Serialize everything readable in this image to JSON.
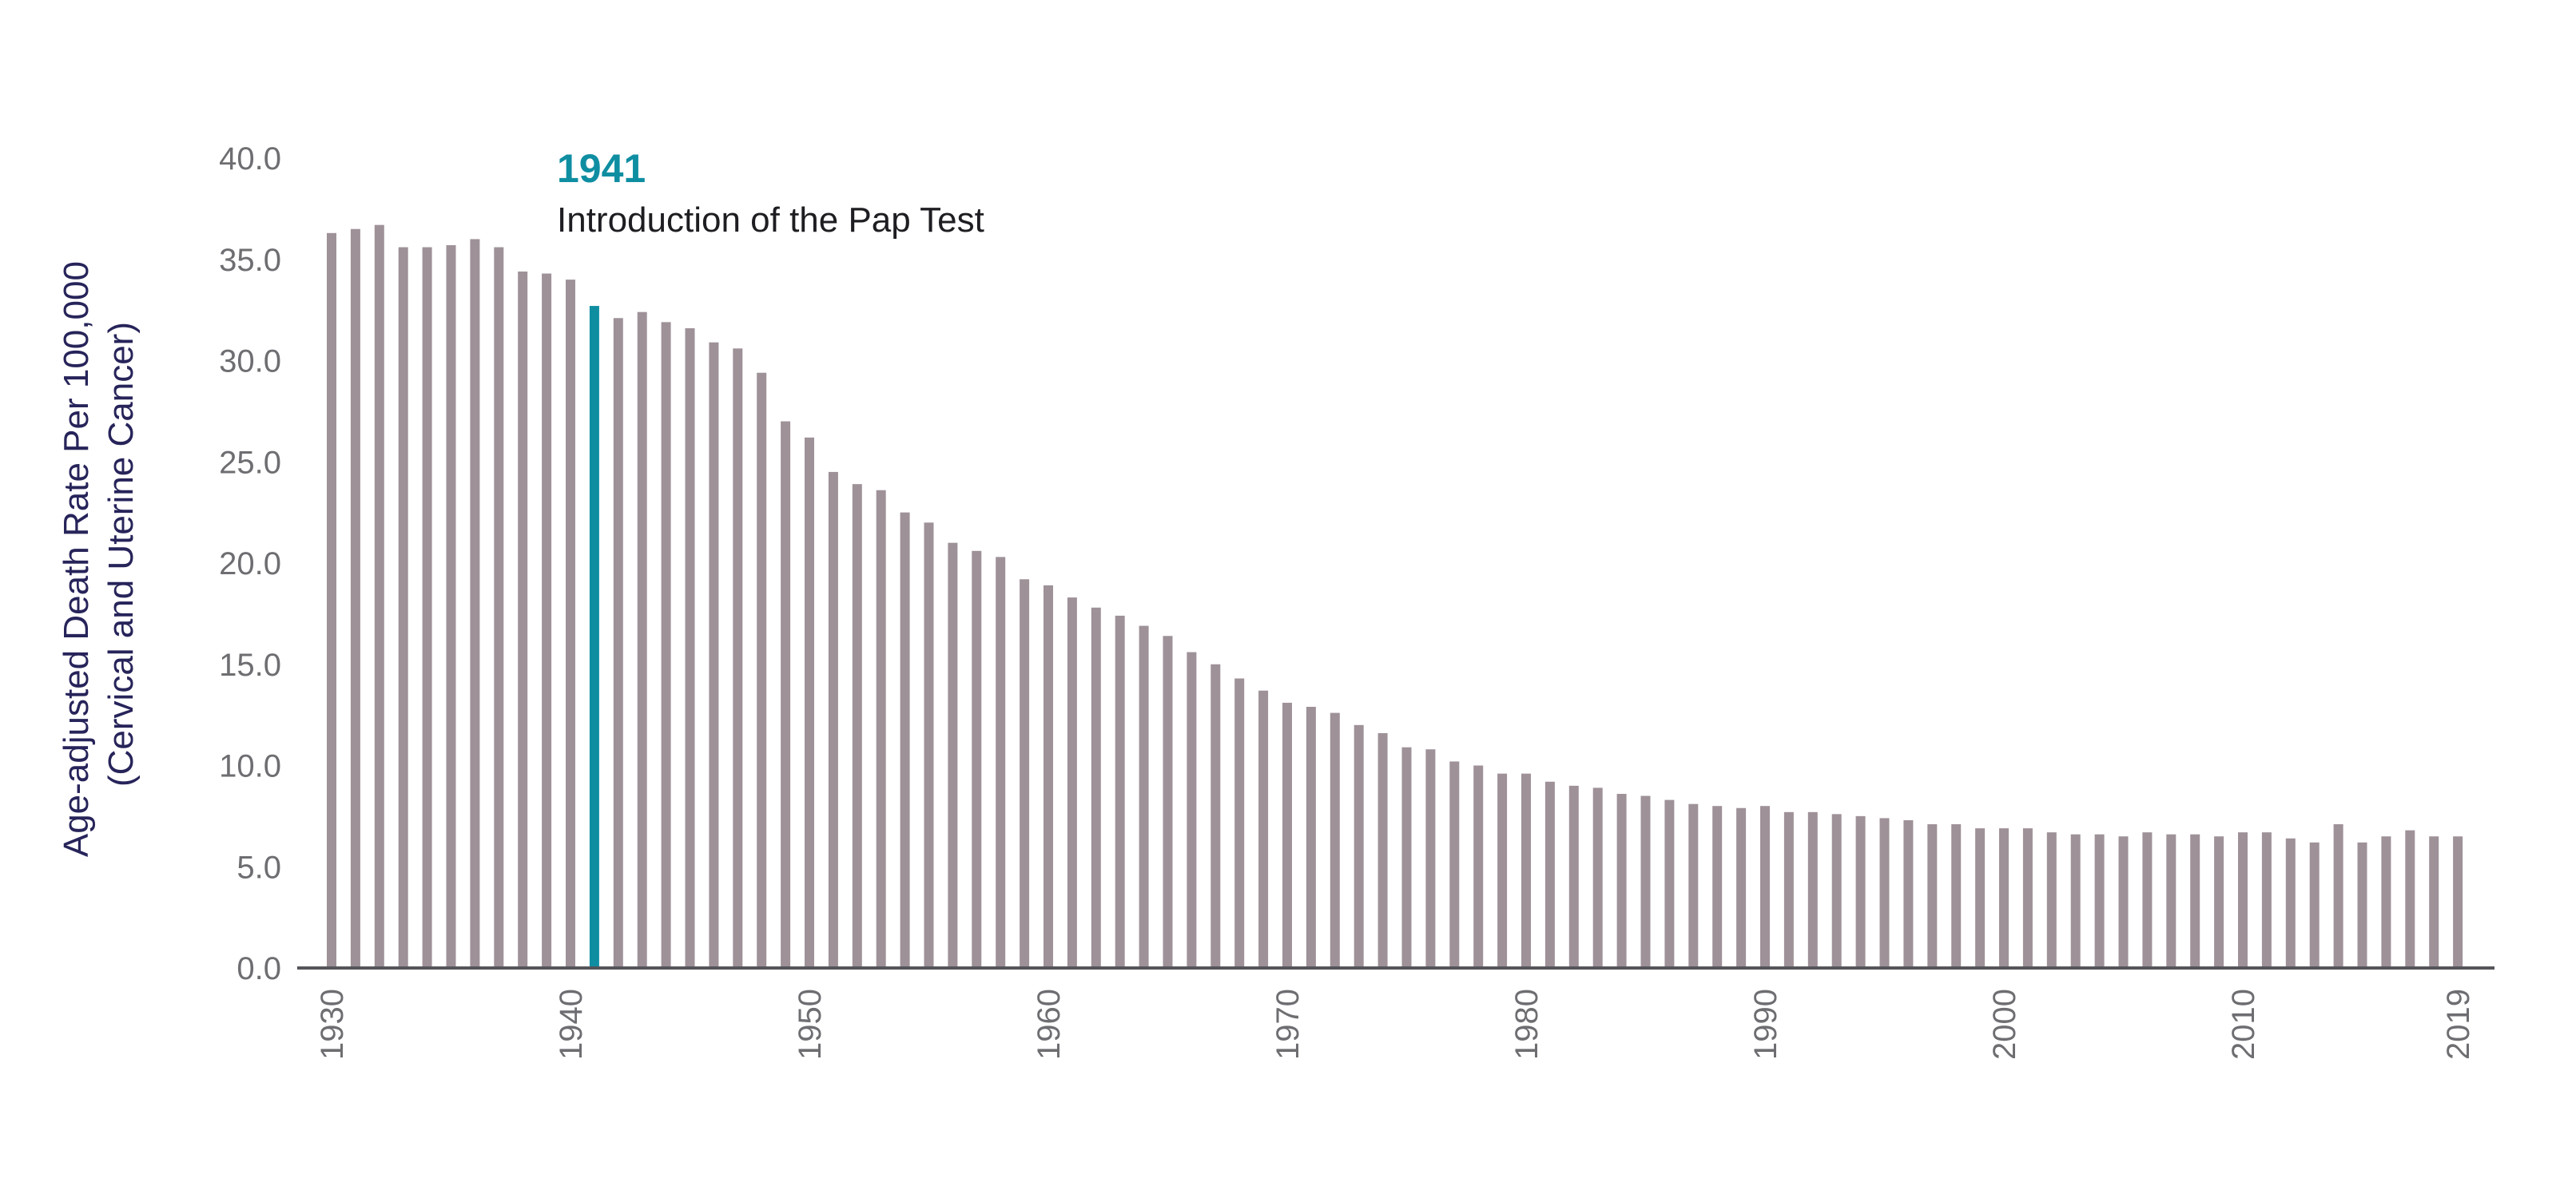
{
  "chart_data": {
    "type": "bar",
    "title": "",
    "xlabel": "",
    "ylabel_line1": "Age-adjusted Death Rate Per 100,000",
    "ylabel_line2": "(Cervical and Uterine Cancer)",
    "ylim": [
      0,
      40
    ],
    "yticks": [
      "0.0",
      "5.0",
      "10.0",
      "15.0",
      "20.0",
      "25.0",
      "30.0",
      "35.0",
      "40.0"
    ],
    "xticks": [
      "1930",
      "1940",
      "1950",
      "1960",
      "1970",
      "1980",
      "1990",
      "2000",
      "2010",
      "2019"
    ],
    "grid": true,
    "x": [
      1930,
      1931,
      1932,
      1933,
      1934,
      1935,
      1936,
      1937,
      1938,
      1939,
      1940,
      1941,
      1942,
      1943,
      1944,
      1945,
      1946,
      1947,
      1948,
      1949,
      1950,
      1951,
      1952,
      1953,
      1954,
      1955,
      1956,
      1957,
      1958,
      1959,
      1960,
      1961,
      1962,
      1963,
      1964,
      1965,
      1966,
      1967,
      1968,
      1969,
      1970,
      1971,
      1972,
      1973,
      1974,
      1975,
      1976,
      1977,
      1978,
      1979,
      1980,
      1981,
      1982,
      1983,
      1984,
      1985,
      1986,
      1987,
      1988,
      1989,
      1990,
      1991,
      1992,
      1993,
      1994,
      1995,
      1996,
      1997,
      1998,
      1999,
      2000,
      2001,
      2002,
      2003,
      2004,
      2005,
      2006,
      2007,
      2008,
      2009,
      2010,
      2011,
      2012,
      2013,
      2014,
      2015,
      2016,
      2017,
      2018,
      2019
    ],
    "values": [
      36.3,
      36.5,
      36.7,
      35.6,
      35.6,
      35.7,
      36.0,
      35.6,
      34.4,
      34.3,
      34.0,
      32.7,
      32.1,
      32.4,
      31.9,
      31.6,
      30.9,
      30.6,
      29.4,
      27.0,
      26.2,
      24.5,
      23.9,
      23.6,
      22.5,
      22.0,
      21.0,
      20.6,
      20.3,
      19.2,
      18.9,
      18.3,
      17.8,
      17.4,
      16.9,
      16.4,
      15.6,
      15.0,
      14.3,
      13.7,
      13.1,
      12.9,
      12.6,
      12.0,
      11.6,
      10.9,
      10.8,
      10.2,
      10.0,
      9.6,
      9.6,
      9.2,
      9.0,
      8.9,
      8.6,
      8.5,
      8.3,
      8.1,
      8.0,
      7.9,
      8.0,
      7.7,
      7.7,
      7.6,
      7.5,
      7.4,
      7.3,
      7.1,
      7.1,
      6.9,
      6.9,
      6.9,
      6.7,
      6.6,
      6.6,
      6.5,
      6.7,
      6.6,
      6.6,
      6.5,
      6.7,
      6.7,
      6.4,
      6.2,
      7.1,
      6.2,
      6.5,
      6.8,
      6.5,
      6.5
    ],
    "highlight_year": 1941,
    "annotation": {
      "year": "1941",
      "text": "Introduction of the Pap Test"
    },
    "colors": {
      "bar": "#9e9198",
      "highlight": "#0f8ea2",
      "grid": "#d5d5d9",
      "axis": "#55555a"
    }
  }
}
